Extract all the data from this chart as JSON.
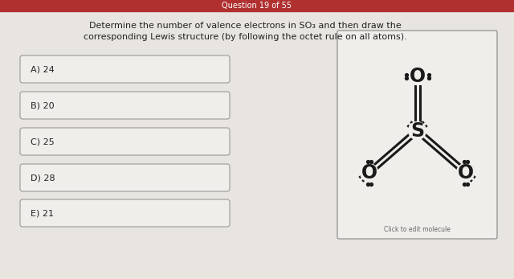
{
  "title_bar_text": "Question 19 of 55",
  "title_bar_color": "#b03030",
  "title_bar_text_color": "#ffffff",
  "bg_color": "#e8e5e0",
  "question_text_line1": "Determine the number of valence electrons in SO₃ and then draw the",
  "question_text_line2": "corresponding Lewis structure (by following the octet rule on all atoms).",
  "question_text_color": "#222222",
  "options": [
    "A) 24",
    "B) 20",
    "C) 25",
    "D) 28",
    "E) 21"
  ],
  "option_box_bg": "#f0eeeb",
  "option_box_border": "#999999",
  "lewis_box_bg": "#f0eeeb",
  "lewis_box_border": "#999999",
  "click_text": "Click to edit molecule",
  "click_text_color": "#666666"
}
